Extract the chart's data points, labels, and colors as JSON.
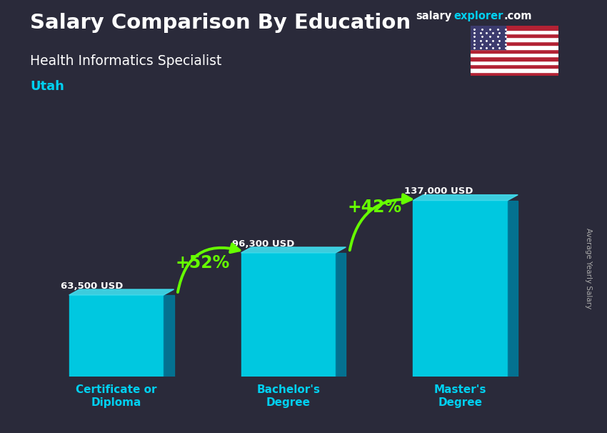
{
  "title_line1": "Salary Comparison By Education",
  "title_line2": "Health Informatics Specialist",
  "title_line3": "Utah",
  "brand_salary": "salary",
  "brand_explorer": "explorer",
  "brand_dot_com": ".com",
  "ylabel": "Average Yearly Salary",
  "categories": [
    "Certificate or\nDiploma",
    "Bachelor's\nDegree",
    "Master's\nDegree"
  ],
  "values": [
    63500,
    96300,
    137000
  ],
  "value_labels": [
    "63,500 USD",
    "96,300 USD",
    "137,000 USD"
  ],
  "pct_labels": [
    "+52%",
    "+42%"
  ],
  "bar_color_face": "#00c8e0",
  "bar_color_side": "#007a9a",
  "bar_color_top": "#40dff0",
  "background_color": "#2a2a3a",
  "text_color_white": "#ffffff",
  "text_color_cyan": "#00d0f0",
  "text_color_green": "#66ff00",
  "arrow_color": "#66ff00",
  "ylim": [
    0,
    175000
  ],
  "bar_width": 0.55,
  "x_positions": [
    0.5,
    1.5,
    2.5
  ],
  "xlim": [
    0,
    3.0
  ]
}
